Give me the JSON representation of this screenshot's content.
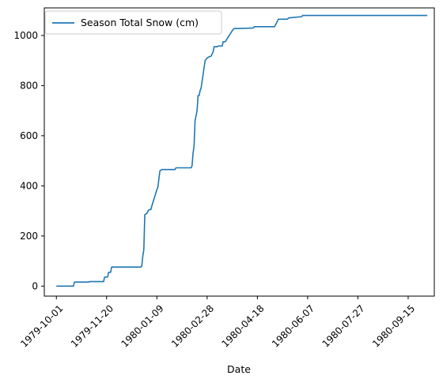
{
  "chart_data": {
    "type": "line",
    "title": "",
    "xlabel": "Date",
    "ylabel": "",
    "xlim": [
      "1979-09-19",
      "1980-10-11"
    ],
    "ylim": [
      -40,
      1110
    ],
    "x_ticks": [
      "1979-10-01",
      "1979-11-20",
      "1980-01-09",
      "1980-02-28",
      "1980-04-18",
      "1980-06-07",
      "1980-07-27",
      "1980-09-15"
    ],
    "y_ticks": [
      0,
      200,
      400,
      600,
      800,
      1000
    ],
    "grid": false,
    "legend_position": "upper left",
    "colors": {
      "series": "#1f77b4",
      "axis": "#000000",
      "legend_border": "#cccccc"
    },
    "series": [
      {
        "name": "Season Total Snow (cm)",
        "x": [
          "1979-10-01",
          "1979-10-18",
          "1979-10-19",
          "1979-11-02",
          "1979-11-03",
          "1979-11-17",
          "1979-11-18",
          "1979-11-21",
          "1979-11-22",
          "1979-11-24",
          "1979-11-25",
          "1979-12-24",
          "1979-12-25",
          "1979-12-26",
          "1979-12-27",
          "1979-12-28",
          "1979-12-30",
          "1980-01-01",
          "1980-01-03",
          "1980-01-04",
          "1980-01-09",
          "1980-01-10",
          "1980-01-12",
          "1980-01-14",
          "1980-01-16",
          "1980-01-17",
          "1980-01-27",
          "1980-01-28",
          "1980-02-12",
          "1980-02-13",
          "1980-02-14",
          "1980-02-15",
          "1980-02-16",
          "1980-02-18",
          "1980-02-19",
          "1980-02-20",
          "1980-02-21",
          "1980-02-22",
          "1980-02-26",
          "1980-02-27",
          "1980-02-28",
          "1980-03-01",
          "1980-03-03",
          "1980-03-05",
          "1980-03-06",
          "1980-03-09",
          "1980-03-10",
          "1980-03-14",
          "1980-03-15",
          "1980-03-17",
          "1980-03-25",
          "1980-03-26",
          "1980-03-30",
          "1980-03-31",
          "1980-04-14",
          "1980-04-15",
          "1980-05-05",
          "1980-05-06",
          "1980-05-08",
          "1980-05-09",
          "1980-05-18",
          "1980-05-19",
          "1980-06-01",
          "1980-06-02",
          "1980-10-04"
        ],
        "y": [
          0,
          0,
          16,
          16,
          18,
          18,
          36,
          36,
          55,
          55,
          76,
          76,
          80,
          120,
          145,
          285,
          290,
          305,
          305,
          320,
          385,
          395,
          460,
          465,
          465,
          465,
          465,
          472,
          472,
          480,
          530,
          560,
          660,
          700,
          760,
          760,
          780,
          790,
          900,
          905,
          910,
          915,
          918,
          935,
          955,
          955,
          958,
          958,
          975,
          975,
          1025,
          1028,
          1028,
          1028,
          1030,
          1035,
          1035,
          1042,
          1058,
          1065,
          1065,
          1070,
          1075,
          1080,
          1080
        ]
      }
    ]
  }
}
